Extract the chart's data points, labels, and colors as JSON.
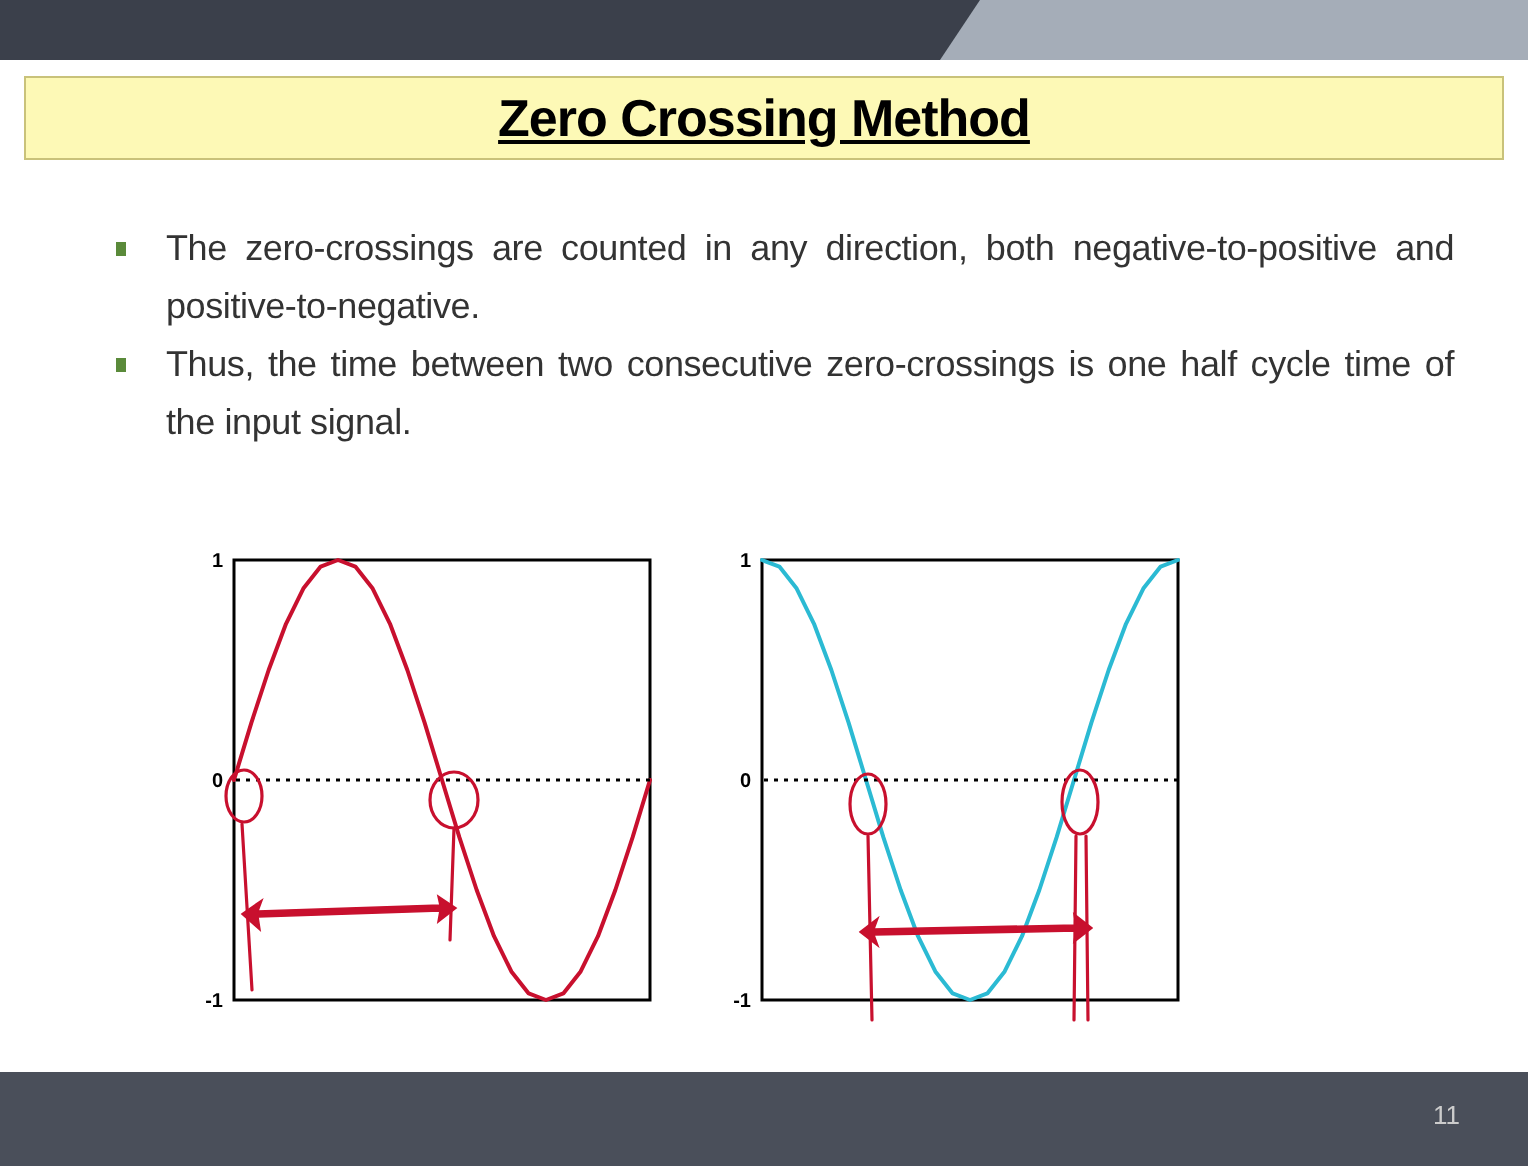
{
  "chart_data": [
    {
      "type": "line",
      "title": "Zero Crossing Method",
      "annotations": [
        "The zero-crossings are counted in any direction, both negative-to-positive and positive-to-negative.",
        "Thus, the time between two consecutive zero-crossings is one half cycle time of the input signal."
      ],
      "categories": [
        null,
        null,
        null,
        null,
        null,
        null,
        null,
        null,
        null,
        null,
        null,
        null,
        null,
        null,
        null,
        null,
        null,
        null,
        null,
        null,
        null,
        null,
        null,
        null,
        null
      ],
      "series": [
        {
          "color": "#c8102e",
          "values": [
            0,
            0.26,
            0.5,
            0.71,
            0.87,
            0.97,
            1,
            0.97,
            0.87,
            0.71,
            0.5,
            0.26,
            0,
            -0.26,
            -0.5,
            -0.71,
            -0.87,
            -0.97,
            -1,
            -0.97,
            -0.87,
            -0.71,
            -0.5,
            -0.26,
            0
          ]
        }
      ],
      "ylim": [
        -1,
        1
      ],
      "yticks": [
        -1,
        0,
        1
      ],
      "tick_labels": "y",
      "ref_lines": [
        {
          "axis": "y",
          "value": 0,
          "line_style": "dotted"
        }
      ]
    },
    {
      "type": "line",
      "annotations": [
        "11"
      ],
      "categories": [
        null,
        null,
        null,
        null,
        null,
        null,
        null,
        null,
        null,
        null,
        null,
        null,
        null,
        null,
        null,
        null,
        null,
        null,
        null,
        null,
        null,
        null,
        null,
        null,
        null
      ],
      "series": [
        {
          "color": "#2bbad3",
          "values": [
            1,
            0.97,
            0.87,
            0.71,
            0.5,
            0.26,
            0,
            -0.26,
            -0.5,
            -0.71,
            -0.87,
            -0.97,
            -1,
            -0.97,
            -0.87,
            -0.71,
            -0.5,
            -0.26,
            0,
            0.26,
            0.5,
            0.71,
            0.87,
            0.97,
            1
          ]
        }
      ],
      "ylim": [
        -1,
        1
      ],
      "yticks": [
        -1,
        0,
        1
      ],
      "tick_labels": "y",
      "ref_lines": [
        {
          "axis": "y",
          "value": 0,
          "line_style": "dotted"
        }
      ]
    }
  ]
}
